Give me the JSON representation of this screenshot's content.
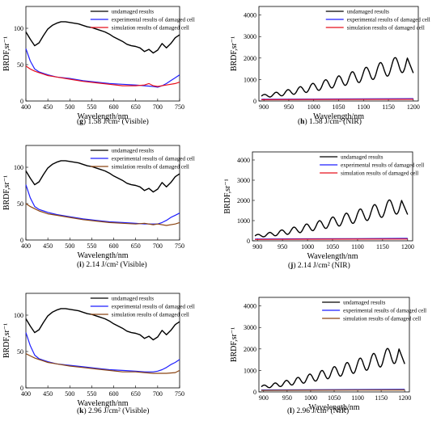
{
  "figure": {
    "colors": {
      "undamaged": "#000000",
      "experimental": "#1f1fff",
      "simulation_red": "#e8101c",
      "simulation_brown": "#8b4513",
      "pink": "#ff9ed6"
    }
  },
  "chart_data": [
    {
      "type": "line",
      "key": "g",
      "caption_letter": "g",
      "caption_text": "1.58 J/cm² (Visible)",
      "xlabel": "Wavelength/nm",
      "ylabel": "BRDF,sr⁻¹",
      "xlim": [
        400,
        750
      ],
      "ylim": [
        0,
        130
      ],
      "xticks": [
        400,
        450,
        500,
        550,
        600,
        650,
        700,
        750
      ],
      "yticks": [
        0,
        50,
        100
      ],
      "legend": "top-right",
      "series": [
        {
          "name": "undamaged results",
          "color": "#000000",
          "x": [
            400,
            410,
            420,
            430,
            440,
            450,
            460,
            470,
            480,
            490,
            500,
            510,
            520,
            530,
            540,
            550,
            560,
            570,
            580,
            590,
            600,
            610,
            620,
            630,
            640,
            650,
            660,
            670,
            680,
            690,
            700,
            710,
            720,
            730,
            740,
            750
          ],
          "y": [
            95,
            85,
            76,
            80,
            90,
            99,
            104,
            107,
            109,
            109,
            108,
            107,
            106,
            104,
            102,
            101,
            99,
            97,
            95,
            92,
            88,
            85,
            82,
            78,
            76,
            75,
            73,
            68,
            71,
            66,
            70,
            79,
            73,
            79,
            87,
            91
          ]
        },
        {
          "name": "experimental results of damaged cell",
          "color": "#1f1fff",
          "x": [
            400,
            410,
            420,
            430,
            440,
            450,
            470,
            500,
            530,
            560,
            590,
            620,
            650,
            670,
            690,
            700,
            710,
            720,
            730,
            740,
            750
          ],
          "y": [
            72,
            55,
            44,
            40,
            38,
            36,
            33,
            31,
            28,
            26,
            24,
            23,
            22,
            21,
            20,
            19,
            21,
            24,
            28,
            32,
            36
          ]
        },
        {
          "name": "simulation results of damaged cell",
          "color": "#e8101c",
          "x": [
            400,
            410,
            420,
            430,
            440,
            450,
            470,
            500,
            530,
            560,
            590,
            620,
            650,
            670,
            680,
            690,
            700,
            720,
            740,
            750
          ],
          "y": [
            48,
            44,
            41,
            39,
            37,
            35,
            33,
            30,
            27,
            25,
            23,
            21,
            21,
            22,
            24,
            21,
            20,
            22,
            24,
            26
          ]
        }
      ]
    },
    {
      "type": "line",
      "key": "h",
      "caption_letter": "h",
      "caption_text": "1.58 J/cm² (NIR)",
      "xlabel": "Wavelength/nm",
      "ylabel": "BRDF,sr⁻¹",
      "xlim": [
        890,
        1210
      ],
      "ylim": [
        0,
        4400
      ],
      "xticks": [
        900,
        950,
        1000,
        1050,
        1100,
        1150,
        1200
      ],
      "yticks": [
        0,
        1000,
        2000,
        3000,
        4000
      ],
      "legend": "top-right",
      "series": [
        {
          "name": "undamaged results",
          "color": "#000000",
          "osc": {
            "x0": 895,
            "x1": 1200,
            "start": 230,
            "end": 1800,
            "amp0": 60,
            "amp1": 420,
            "period": 23,
            "tail": 1300
          }
        },
        {
          "name": "experimental results of damaged cell",
          "color": "#1f1fff",
          "x": [
            895,
            1000,
            1100,
            1200
          ],
          "y": [
            80,
            90,
            100,
            110
          ]
        },
        {
          "name": "simulation results of damaged cell",
          "color": "#e8101c",
          "x": [
            895,
            1000,
            1100,
            1200
          ],
          "y": [
            60,
            70,
            75,
            80
          ]
        }
      ]
    },
    {
      "type": "line",
      "key": "i",
      "caption_letter": "i",
      "caption_text": "2.14 J/cm² (Visible)",
      "xlabel": "Wavelength/nm",
      "ylabel": "BRDF,sr⁻¹",
      "xlim": [
        400,
        750
      ],
      "ylim": [
        0,
        130
      ],
      "xticks": [
        400,
        450,
        500,
        550,
        600,
        650,
        700,
        750
      ],
      "yticks": [
        0,
        50,
        100
      ],
      "legend": "top-right",
      "series": [
        {
          "name": "undamaged results",
          "color": "#000000",
          "x": [
            400,
            410,
            420,
            430,
            440,
            450,
            460,
            470,
            480,
            490,
            500,
            510,
            520,
            530,
            540,
            550,
            560,
            570,
            580,
            590,
            600,
            610,
            620,
            630,
            640,
            650,
            660,
            670,
            680,
            690,
            700,
            710,
            720,
            730,
            740,
            750
          ],
          "y": [
            95,
            85,
            76,
            80,
            90,
            99,
            104,
            107,
            109,
            109,
            108,
            107,
            106,
            104,
            102,
            101,
            99,
            97,
            95,
            92,
            88,
            85,
            82,
            78,
            76,
            75,
            73,
            68,
            71,
            66,
            70,
            79,
            73,
            79,
            87,
            91
          ]
        },
        {
          "name": "experimental results of damaged cell",
          "color": "#1f1fff",
          "x": [
            400,
            410,
            420,
            430,
            440,
            450,
            470,
            500,
            530,
            560,
            590,
            620,
            650,
            670,
            690,
            700,
            710,
            720,
            730,
            740,
            750
          ],
          "y": [
            76,
            58,
            46,
            42,
            40,
            38,
            35,
            32,
            29,
            27,
            25,
            24,
            23,
            22,
            22,
            22,
            24,
            27,
            31,
            34,
            37
          ]
        },
        {
          "name": "simulation results of damaged cell",
          "color": "#8b4513",
          "x": [
            400,
            410,
            420,
            430,
            440,
            450,
            470,
            500,
            530,
            560,
            590,
            620,
            650,
            670,
            690,
            700,
            720,
            740,
            750
          ],
          "y": [
            50,
            46,
            43,
            40,
            38,
            36,
            34,
            31,
            28,
            26,
            24,
            23,
            22,
            23,
            21,
            22,
            20,
            22,
            24
          ]
        }
      ]
    },
    {
      "type": "line",
      "key": "j",
      "caption_letter": "j",
      "caption_text": "2.14 J/cm² (NIR)",
      "xlabel": "Wavelength/nm",
      "ylabel": "BRDF,sr⁻¹",
      "xlim": [
        890,
        1210
      ],
      "ylim": [
        0,
        4400
      ],
      "xticks": [
        900,
        950,
        1000,
        1050,
        1100,
        1150,
        1200
      ],
      "yticks": [
        0,
        1000,
        2000,
        3000,
        4000
      ],
      "legend": "top-right",
      "series": [
        {
          "name": "undamaged results",
          "color": "#000000",
          "osc": {
            "x0": 895,
            "x1": 1200,
            "start": 240,
            "end": 1800,
            "amp0": 60,
            "amp1": 420,
            "period": 23,
            "tail": 1300
          }
        },
        {
          "name": "experimental results of damaged cell",
          "color": "#1f1fff",
          "x": [
            895,
            1000,
            1100,
            1200
          ],
          "y": [
            90,
            100,
            110,
            120
          ]
        },
        {
          "name": "simulation results of damaged cell",
          "color": "#e8101c",
          "x": [
            895,
            1000,
            1100,
            1200
          ],
          "y": [
            70,
            80,
            85,
            90
          ]
        }
      ]
    },
    {
      "type": "line",
      "key": "k",
      "caption_letter": "k",
      "caption_text": "2.96 J/cm² (Visible)",
      "xlabel": "Wavelength/nm",
      "ylabel": "BRDF,sr⁻¹",
      "xlim": [
        400,
        750
      ],
      "ylim": [
        0,
        130
      ],
      "xticks": [
        400,
        450,
        500,
        550,
        600,
        650,
        700,
        750
      ],
      "yticks": [
        0,
        50,
        100
      ],
      "legend": "top-right",
      "series": [
        {
          "name": "undamaged results",
          "color": "#000000",
          "x": [
            400,
            410,
            420,
            430,
            440,
            450,
            460,
            470,
            480,
            490,
            500,
            510,
            520,
            530,
            540,
            550,
            560,
            570,
            580,
            590,
            600,
            610,
            620,
            630,
            640,
            650,
            660,
            670,
            680,
            690,
            700,
            710,
            720,
            730,
            740,
            750
          ],
          "y": [
            95,
            85,
            76,
            80,
            90,
            99,
            104,
            107,
            109,
            109,
            108,
            107,
            106,
            104,
            102,
            101,
            99,
            97,
            95,
            92,
            88,
            85,
            82,
            78,
            76,
            75,
            73,
            68,
            71,
            66,
            70,
            79,
            73,
            79,
            87,
            91
          ]
        },
        {
          "name": "experimental results of damaged cell",
          "color": "#1f1fff",
          "x": [
            400,
            410,
            420,
            430,
            440,
            450,
            470,
            500,
            530,
            560,
            590,
            620,
            650,
            670,
            690,
            700,
            710,
            720,
            730,
            740,
            750
          ],
          "y": [
            76,
            58,
            45,
            40,
            38,
            36,
            33,
            31,
            29,
            27,
            25,
            24,
            23,
            22,
            22,
            23,
            25,
            28,
            32,
            35,
            39
          ]
        },
        {
          "name": "simulation results of damaged cell",
          "color": "#8b4513",
          "x": [
            400,
            410,
            420,
            430,
            440,
            450,
            470,
            500,
            530,
            560,
            590,
            620,
            650,
            670,
            690,
            700,
            720,
            740,
            750
          ],
          "y": [
            47,
            44,
            41,
            39,
            37,
            35,
            33,
            30,
            28,
            26,
            24,
            22,
            22,
            21,
            20,
            20,
            20,
            21,
            24
          ]
        }
      ]
    },
    {
      "type": "line",
      "key": "l",
      "caption_letter": "l",
      "caption_text": "2.96 J/cm² (NIR)",
      "xlabel": "Wavelength/nm",
      "ylabel": "BRDF,sr⁻¹",
      "xlim": [
        890,
        1210
      ],
      "ylim": [
        0,
        4400
      ],
      "xticks": [
        900,
        950,
        1000,
        1050,
        1100,
        1150,
        1200
      ],
      "yticks": [
        0,
        1000,
        2000,
        3000,
        4000
      ],
      "legend": "top-right",
      "series": [
        {
          "name": "undamaged results",
          "color": "#000000",
          "osc": {
            "x0": 895,
            "x1": 1200,
            "start": 240,
            "end": 1800,
            "amp0": 60,
            "amp1": 420,
            "period": 23,
            "tail": 1300
          }
        },
        {
          "name": "experimental results of damaged cell",
          "color": "#1f1fff",
          "x": [
            895,
            1000,
            1100,
            1200
          ],
          "y": [
            90,
            100,
            110,
            120
          ]
        },
        {
          "name": "simulation results of damaged cell",
          "color": "#8b4513",
          "x": [
            895,
            1000,
            1100,
            1200
          ],
          "y": [
            70,
            80,
            85,
            90
          ]
        }
      ]
    }
  ]
}
